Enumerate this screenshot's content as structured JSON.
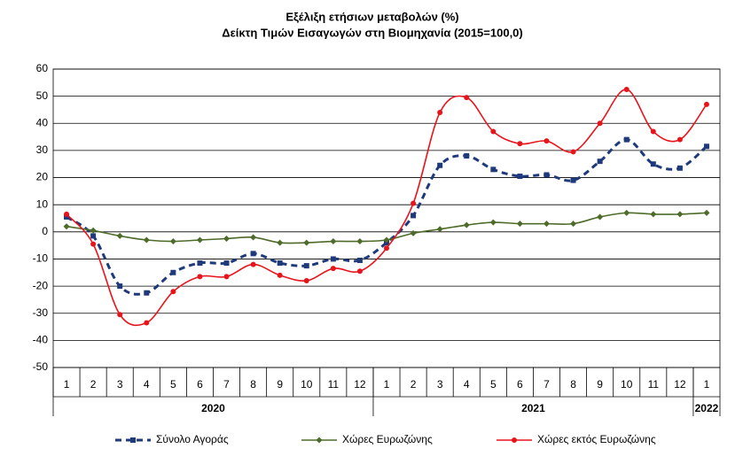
{
  "chart_data": {
    "type": "line",
    "title": "Εξέλιξη ετήσιων μεταβολών (%)",
    "subtitle": "Δείκτη Τιμών Εισαγωγών στη Βιομηχανία (2015=100,0)",
    "categories": [
      "1",
      "2",
      "3",
      "4",
      "5",
      "6",
      "7",
      "8",
      "9",
      "10",
      "11",
      "12",
      "1",
      "2",
      "3",
      "4",
      "5",
      "6",
      "7",
      "8",
      "9",
      "10",
      "11",
      "12",
      "1"
    ],
    "year_groups": [
      {
        "label": "2020",
        "count": 12
      },
      {
        "label": "2021",
        "count": 12
      },
      {
        "label": "2022",
        "count": 1
      }
    ],
    "ylim": [
      -50,
      60
    ],
    "yticks": [
      -50,
      -40,
      -30,
      -20,
      -10,
      0,
      10,
      20,
      30,
      40,
      50,
      60
    ],
    "grid": true,
    "legend": "bottom",
    "series": [
      {
        "name": "Σύνολο Αγοράς",
        "color": "#1f3a7a",
        "dashed": true,
        "marker": "square",
        "values": [
          5.5,
          -1.5,
          -20,
          -22.5,
          -15,
          -11.5,
          -11.5,
          -8,
          -11.5,
          -12.5,
          -10,
          -10.5,
          -4,
          6,
          24.5,
          28,
          23,
          20.5,
          21,
          19,
          26,
          34,
          25,
          23.5,
          31.5
        ]
      },
      {
        "name": "Χώρες Ευρωζώνης",
        "color": "#4e6b2a",
        "dashed": false,
        "marker": "diamond",
        "values": [
          2,
          0.5,
          -1.5,
          -3,
          -3.5,
          -3,
          -2.5,
          -2,
          -4,
          -4,
          -3.5,
          -3.5,
          -3,
          -0.5,
          1,
          2.5,
          3.5,
          3,
          3,
          3,
          5.5,
          7,
          6.5,
          6.5,
          7
        ]
      },
      {
        "name": "Χώρες εκτός Ευρωζώνης",
        "color": "#e8141b",
        "dashed": false,
        "marker": "circle",
        "values": [
          6.5,
          -4.5,
          -30.5,
          -33.5,
          -22,
          -16.5,
          -16.5,
          -12,
          -16,
          -18,
          -13.5,
          -14.5,
          -6,
          10.5,
          44,
          49.5,
          37,
          32.5,
          33.5,
          29.5,
          40,
          52.5,
          37,
          34,
          47
        ]
      }
    ]
  }
}
